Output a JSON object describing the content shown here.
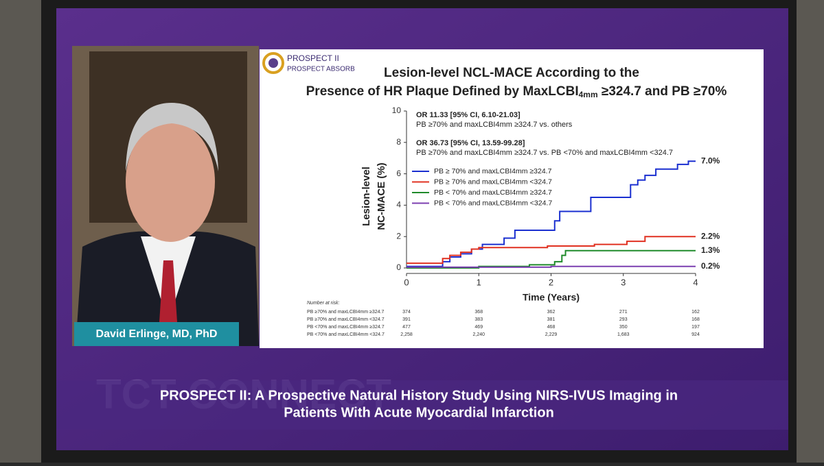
{
  "slide": {
    "logo_title": "PROSPECT II",
    "logo_subtitle": "PROSPECT ABSORB",
    "presenter": "David Erlinge, MD, PhD",
    "banner_line1": "PROSPECT II: A Prospective Natural History Study Using NIRS-IVUS Imaging in",
    "banner_line2": "Patients With Acute Myocardial Infarction",
    "watermark": "TCT CONNECT"
  },
  "chart_data": {
    "type": "line",
    "title_line1": "Lesion-level NCL-MACE According to the",
    "title_line2": [
      "Presence of HR Plaque Defined by MaxLCBI",
      "4mm",
      " ≥324.7 and PB ≥70%"
    ],
    "annotations": [
      "OR 11.33 [95% CI, 6.10-21.03]",
      "PB ≥70% and maxLCBI4mm ≥324.7 vs. others",
      "OR 36.73 [95% CI, 13.59-99.28]",
      "PB ≥70% and maxLCBI4mm ≥324.7 vs. PB <70% and maxLCBI4mm <324.7"
    ],
    "y_label": [
      "Lesion-level",
      "NC-MACE (%)"
    ],
    "x_label": "Time (Years)",
    "xlim": [
      0,
      4
    ],
    "ylim": [
      0,
      10
    ],
    "xticks": [
      0,
      1,
      2,
      3,
      4
    ],
    "yticks": [
      0,
      2,
      4,
      6,
      8,
      10
    ],
    "series": [
      {
        "name": "PB ≥ 70% and maxLCBI4mm ≥324.7",
        "color": "#1a2fd0",
        "end_label": "7.0%",
        "x": [
          0,
          0.5,
          0.6,
          0.75,
          0.9,
          1.05,
          1.35,
          1.5,
          2.05,
          2.12,
          2.55,
          3.1,
          3.2,
          3.3,
          3.45,
          3.75,
          3.9
        ],
        "values": [
          0.1,
          0.4,
          0.7,
          0.9,
          1.2,
          1.5,
          1.9,
          2.4,
          3.0,
          3.6,
          4.5,
          5.3,
          5.6,
          5.9,
          6.3,
          6.6,
          6.8
        ]
      },
      {
        "name": "PB ≥ 70% and maxLCBI4mm <324.7",
        "color": "#e03020",
        "end_label": "2.2%",
        "x": [
          0,
          0.5,
          0.6,
          0.75,
          0.9,
          1.0,
          1.95,
          2.6,
          3.05,
          3.3
        ],
        "values": [
          0.3,
          0.6,
          0.8,
          1.0,
          1.2,
          1.3,
          1.4,
          1.5,
          1.7,
          2.0
        ]
      },
      {
        "name": "PB < 70% and maxLCBI4mm ≥324.7",
        "color": "#1f8a2a",
        "end_label": "1.3%",
        "x": [
          0,
          1.0,
          1.7,
          2.05,
          2.15,
          2.2
        ],
        "values": [
          0,
          0.1,
          0.2,
          0.4,
          0.8,
          1.1
        ]
      },
      {
        "name": "PB < 70% and maxLCBI4mm <324.7",
        "color": "#7b3fb0",
        "end_label": "0.2%",
        "x": [
          0,
          2.0
        ],
        "values": [
          0.05,
          0.1
        ]
      }
    ],
    "risk_table": {
      "title": "Number at risk:",
      "rows": [
        {
          "label": "PB ≥70% and maxLCBI4mm ≥324.7",
          "values": [
            "374",
            "368",
            "362",
            "271",
            "162"
          ]
        },
        {
          "label": "PB ≥70% and maxLCBI4mm <324.7",
          "values": [
            "391",
            "383",
            "381",
            "293",
            "168"
          ]
        },
        {
          "label": "PB <70% and maxLCBI4mm ≥324.7",
          "values": [
            "477",
            "469",
            "468",
            "350",
            "197"
          ]
        },
        {
          "label": "PB <70% and maxLCBI4mm <324.7",
          "values": [
            "2,258",
            "2,240",
            "2,229",
            "1,683",
            "924"
          ]
        }
      ]
    }
  }
}
